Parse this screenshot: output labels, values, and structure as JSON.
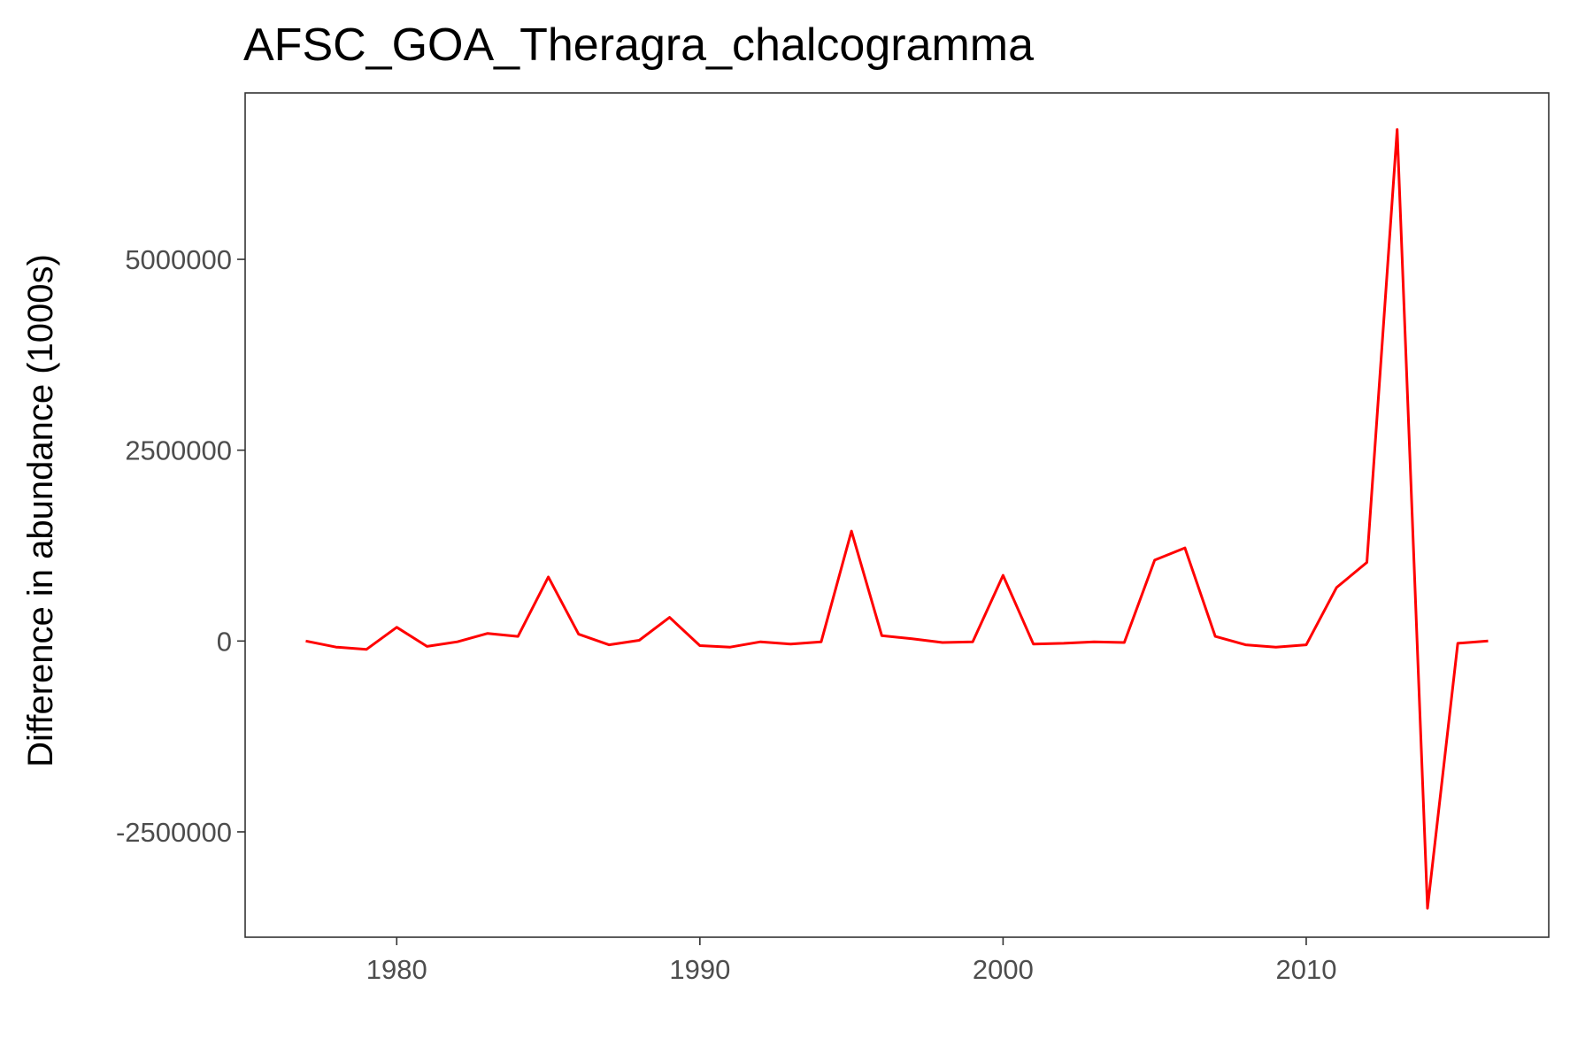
{
  "chart_data": {
    "type": "line",
    "title": "AFSC_GOA_Theragra_chalcogramma",
    "xlabel": "",
    "ylabel": "Difference in abundance (1000s)",
    "xlim": [
      1975,
      2018
    ],
    "ylim": [
      -3880000,
      7180000
    ],
    "x_ticks": [
      1980,
      1990,
      2000,
      2010
    ],
    "x_tick_labels": [
      "1980",
      "1990",
      "2000",
      "2010"
    ],
    "y_ticks": [
      -2500000,
      0,
      2500000,
      5000000
    ],
    "y_tick_labels": [
      "-2500000",
      "0",
      "2500000",
      "5000000"
    ],
    "grid": false,
    "legend": "none",
    "series": [
      {
        "color": "#ff0000",
        "x": [
          1977,
          1978,
          1979,
          1980,
          1981,
          1982,
          1983,
          1984,
          1985,
          1986,
          1987,
          1988,
          1989,
          1990,
          1991,
          1992,
          1993,
          1994,
          1995,
          1996,
          1997,
          1998,
          1999,
          2000,
          2001,
          2002,
          2003,
          2004,
          2005,
          2006,
          2007,
          2008,
          2009,
          2010,
          2011,
          2012,
          2013,
          2014,
          2015,
          2016
        ],
        "y": [
          0,
          -80000,
          -110000,
          180000,
          -70000,
          -10000,
          100000,
          60000,
          840000,
          90000,
          -50000,
          10000,
          310000,
          -60000,
          -80000,
          -10000,
          -40000,
          -10000,
          1440000,
          70000,
          30000,
          -20000,
          -10000,
          860000,
          -40000,
          -30000,
          -10000,
          -20000,
          1060000,
          1220000,
          60000,
          -50000,
          -80000,
          -50000,
          700000,
          1030000,
          6700000,
          -3500000,
          -30000,
          0
        ]
      }
    ]
  }
}
